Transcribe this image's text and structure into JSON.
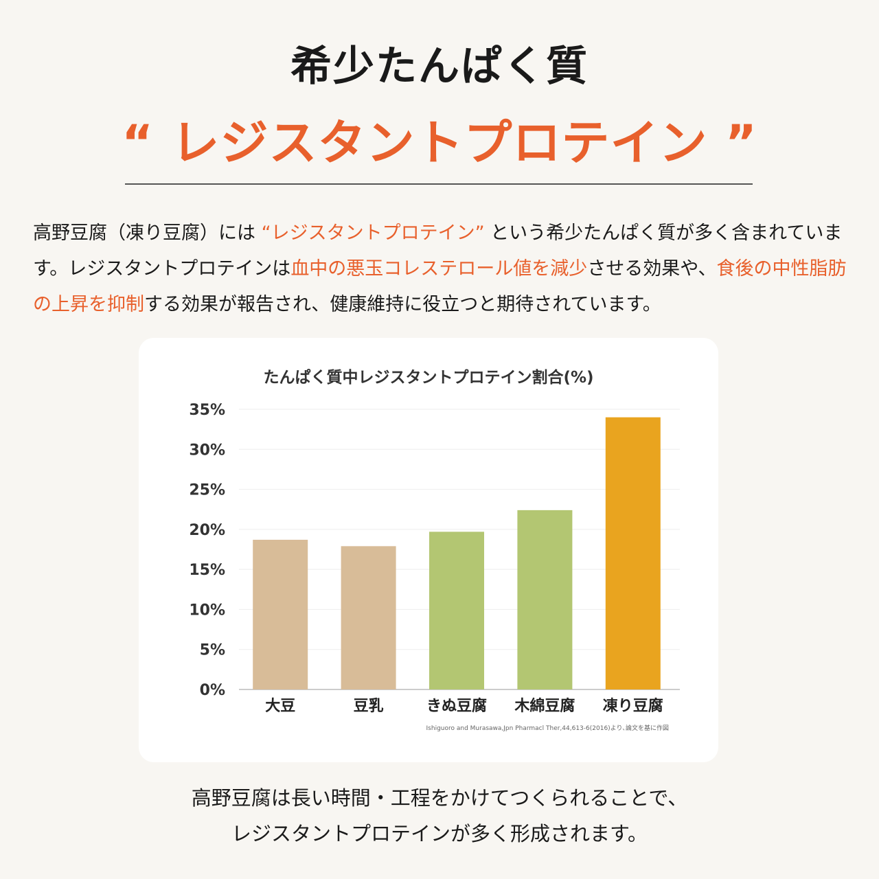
{
  "header": {
    "title": "希少たんぱく質",
    "subtitle": "“ レジスタントプロテイン ”"
  },
  "paragraph": {
    "segments": [
      {
        "text": "高野豆腐（凍り豆腐）には ",
        "highlight": false
      },
      {
        "text": "“レジスタントプロテイン”",
        "highlight": true
      },
      {
        "text": " という希少たんぱく質が多く含まれています。レジスタントプロテインは",
        "highlight": false
      },
      {
        "text": "血中の悪玉コレステロール値を減少",
        "highlight": true
      },
      {
        "text": "させる効果や、",
        "highlight": false
      },
      {
        "text": "食後の中性脂肪の上昇を抑制",
        "highlight": true
      },
      {
        "text": "する効果が報告され、健康維持に役立つと期待されています。",
        "highlight": false
      }
    ]
  },
  "colors": {
    "accent": "#e8602c",
    "soy": "#d8bc98",
    "tofu": "#b3c672",
    "koya": "#e9a41f"
  },
  "chart_data": {
    "type": "bar",
    "title": "たんぱく質中レジスタントプロテイン割合(%)",
    "categories": [
      "大豆",
      "豆乳",
      "きぬ豆腐",
      "木綿豆腐",
      "凍り豆腐"
    ],
    "values": [
      18.7,
      17.9,
      19.7,
      22.4,
      34.0
    ],
    "bar_colors": [
      "#d8bc98",
      "#d8bc98",
      "#b3c672",
      "#b3c672",
      "#e9a41f"
    ],
    "ylim": [
      0,
      35
    ],
    "yticks": [
      "0%",
      "5%",
      "10%",
      "15%",
      "20%",
      "25%",
      "30%",
      "35%"
    ],
    "ytick_values": [
      0,
      5,
      10,
      15,
      20,
      25,
      30,
      35
    ],
    "xlabel": "",
    "ylabel": "",
    "grid": true,
    "source": "Ishiguoro and Murasawa,Jpn Pharmacl Ther,44,613-6(2016)より､論文を基に作図"
  },
  "footer": {
    "line1": "高野豆腐は長い時間・工程をかけてつくられることで、",
    "line2": "レジスタントプロテインが多く形成されます。"
  }
}
